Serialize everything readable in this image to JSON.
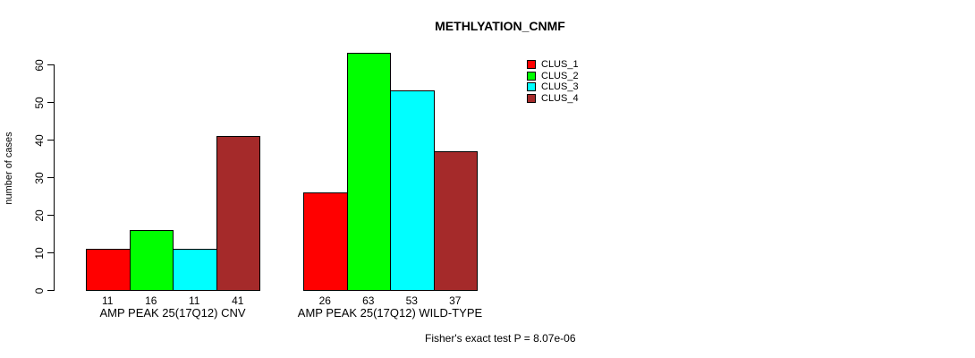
{
  "chart_data": {
    "type": "bar",
    "title": "METHLYATION_CNMF",
    "ylabel": "number of cases",
    "xlabel": "",
    "ylim": [
      0,
      63
    ],
    "yticks": [
      0,
      10,
      20,
      30,
      40,
      50,
      60
    ],
    "grid": false,
    "series": [
      {
        "name": "CLUS_1",
        "color": "#FF0000"
      },
      {
        "name": "CLUS_2",
        "color": "#00FF00"
      },
      {
        "name": "CLUS_3",
        "color": "#00FFFF"
      },
      {
        "name": "CLUS_4",
        "color": "#A52A2A"
      }
    ],
    "groups": [
      {
        "label": "AMP PEAK 25(17Q12) CNV",
        "values": [
          11,
          16,
          11,
          41
        ]
      },
      {
        "label": "AMP PEAK 25(17Q12) WILD-TYPE",
        "values": [
          26,
          63,
          53,
          37
        ]
      }
    ],
    "bar_value_labels": [
      [
        11,
        16,
        11,
        41
      ],
      [
        26,
        63,
        53,
        37
      ]
    ],
    "legend": {
      "position": "top-right",
      "entries": [
        "CLUS_1",
        "CLUS_2",
        "CLUS_3",
        "CLUS_4"
      ]
    }
  },
  "annotation": {
    "fisher_test": "Fisher's exact test P = 8.07e-06"
  }
}
